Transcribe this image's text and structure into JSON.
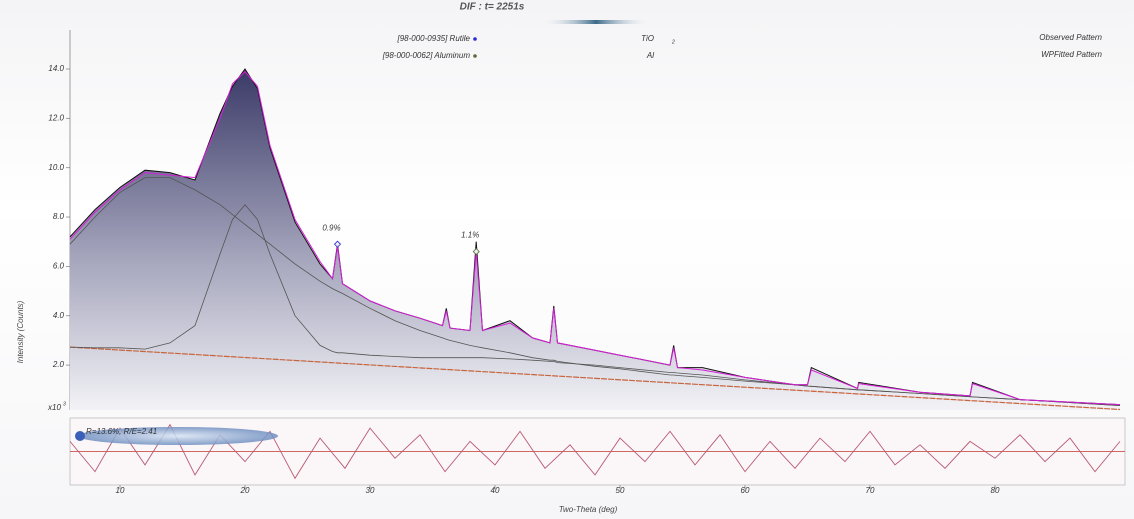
{
  "chart_data": [
    {
      "type": "line",
      "title": "DIF : t= 2251s",
      "y_label": "Intensity (Counts)",
      "y_multiplier": {
        "text": "x10",
        "exponent": "3"
      },
      "xlim": [
        6,
        90.4
      ],
      "ylim": [
        0.18,
        15.58
      ],
      "xticks": [
        10,
        20,
        30,
        40,
        50,
        60,
        70,
        80
      ],
      "yticks": [
        {
          "value": 2,
          "label": "2.0"
        },
        {
          "value": 4,
          "label": "4.0"
        },
        {
          "value": 6,
          "label": "6.0"
        },
        {
          "value": 8,
          "label": "8.0"
        },
        {
          "value": 10,
          "label": "10.0"
        },
        {
          "value": 12,
          "label": "12.0"
        },
        {
          "value": 14,
          "label": "14.0"
        }
      ],
      "phases": [
        {
          "name": "[98-000-0935] Rutile",
          "formula": "TiO",
          "subscript": "2",
          "color": "#2b2bd6"
        },
        {
          "name": "[98-000-0062] Aluminum",
          "formula": "Al",
          "color": "#5b6b3a"
        }
      ],
      "x": [
        6,
        8,
        10,
        12,
        14,
        16,
        18,
        19,
        20,
        21,
        22,
        24,
        26,
        27,
        27.4,
        27.8,
        30,
        32,
        34,
        35.8,
        36.1,
        36.4,
        38,
        38.5,
        39,
        41.2,
        43,
        44.4,
        44.7,
        45,
        48,
        50,
        54,
        54.3,
        54.6,
        56.6,
        60,
        64,
        65,
        65.3,
        69,
        69.1,
        74,
        78,
        78.2,
        82,
        86,
        90
      ],
      "series": [
        {
          "name": "Observed Pattern",
          "color": "#111111",
          "values": [
            7.2,
            8.3,
            9.2,
            9.9,
            9.8,
            9.5,
            12.2,
            13.3,
            14.0,
            13.2,
            10.8,
            7.8,
            6.1,
            5.5,
            6.9,
            5.3,
            4.6,
            4.2,
            3.9,
            3.6,
            4.3,
            3.5,
            3.4,
            7.0,
            3.4,
            3.8,
            3.1,
            2.9,
            4.4,
            2.9,
            2.6,
            2.4,
            2.0,
            2.8,
            1.9,
            1.9,
            1.5,
            1.2,
            1.2,
            1.9,
            1.05,
            1.3,
            0.9,
            0.75,
            1.3,
            0.6,
            0.5,
            0.4
          ]
        },
        {
          "name": "WPFitted Pattern",
          "color": "#d81ed8",
          "values": [
            7.1,
            8.2,
            9.1,
            9.8,
            9.7,
            9.6,
            12.0,
            13.4,
            13.9,
            13.3,
            10.9,
            7.9,
            6.2,
            5.5,
            6.8,
            5.3,
            4.6,
            4.2,
            3.9,
            3.6,
            4.2,
            3.5,
            3.4,
            6.6,
            3.4,
            3.7,
            3.1,
            2.9,
            4.3,
            2.9,
            2.6,
            2.4,
            2.0,
            2.7,
            1.9,
            1.8,
            1.5,
            1.2,
            1.2,
            1.8,
            1.05,
            1.25,
            0.9,
            0.75,
            1.25,
            0.6,
            0.5,
            0.4
          ]
        },
        {
          "color": "#555555",
          "values": [
            6.9,
            8.0,
            9.0,
            9.6,
            9.6,
            9.1,
            8.5,
            8.1,
            7.7,
            7.3,
            6.9,
            6.1,
            5.4,
            5.1,
            5.0,
            4.9,
            4.3,
            3.8,
            3.4,
            3.1,
            3.05,
            3.0,
            2.8,
            2.75,
            2.7,
            2.5,
            2.3,
            2.2,
            2.2,
            2.15,
            1.95,
            1.85,
            1.6,
            1.6,
            1.58,
            1.5,
            1.35,
            1.2,
            1.15,
            1.14,
            1.0,
            1.0,
            0.85,
            0.72,
            0.71,
            0.6,
            0.48,
            0.36
          ]
        },
        {
          "color": "#555555",
          "values": [
            2.73,
            2.7,
            2.7,
            2.65,
            2.9,
            3.6,
            6.5,
            7.9,
            8.5,
            7.9,
            6.5,
            4.0,
            2.8,
            2.55,
            2.5,
            2.5,
            2.4,
            2.35,
            2.3,
            2.3,
            2.3,
            2.3,
            2.3,
            2.3,
            2.3,
            2.25,
            2.2,
            2.15,
            2.15,
            2.1,
            2.0,
            1.9,
            1.7,
            1.7,
            1.68,
            1.6,
            1.4,
            1.2,
            1.15,
            1.14,
            1.0,
            1.0,
            0.85,
            0.72,
            0.71,
            0.6,
            0.48,
            0.36
          ]
        }
      ],
      "background": {
        "color": "#c8643c",
        "x": [
          6,
          90
        ],
        "values": [
          2.73,
          0.2
        ]
      },
      "annotations": [
        {
          "text": "0.9%",
          "x": 27.4,
          "y": 6.9,
          "color": "#2b2bd6"
        },
        {
          "text": "1.1%",
          "x": 38.5,
          "y": 6.6,
          "color": "#5b6b3a"
        }
      ]
    },
    {
      "type": "line",
      "x_label": "Two-Theta (deg)",
      "annotation": "R=13.6%, R/E=2.41",
      "color": "#b85a74",
      "ylim": [
        -1,
        1
      ],
      "x": [
        6,
        8,
        10,
        12,
        14,
        16,
        18,
        20,
        22,
        24,
        26,
        28,
        30,
        32,
        34,
        36,
        38,
        40,
        42,
        44,
        46,
        48,
        50,
        52,
        54,
        56,
        58,
        60,
        62,
        64,
        66,
        68,
        70,
        72,
        74,
        76,
        78,
        80,
        82,
        84,
        86,
        88,
        90
      ],
      "values": [
        0.3,
        -0.6,
        0.7,
        -0.4,
        0.8,
        -0.7,
        0.5,
        -0.3,
        0.6,
        -0.8,
        0.4,
        -0.5,
        0.7,
        -0.2,
        0.5,
        -0.6,
        0.3,
        -0.4,
        0.6,
        -0.5,
        0.2,
        -0.7,
        0.4,
        -0.3,
        0.6,
        -0.4,
        0.5,
        -0.6,
        0.3,
        -0.5,
        0.4,
        -0.3,
        0.6,
        -0.4,
        0.2,
        -0.5,
        0.3,
        -0.2,
        0.5,
        -0.3,
        0.4,
        -0.6,
        0.3
      ]
    }
  ]
}
